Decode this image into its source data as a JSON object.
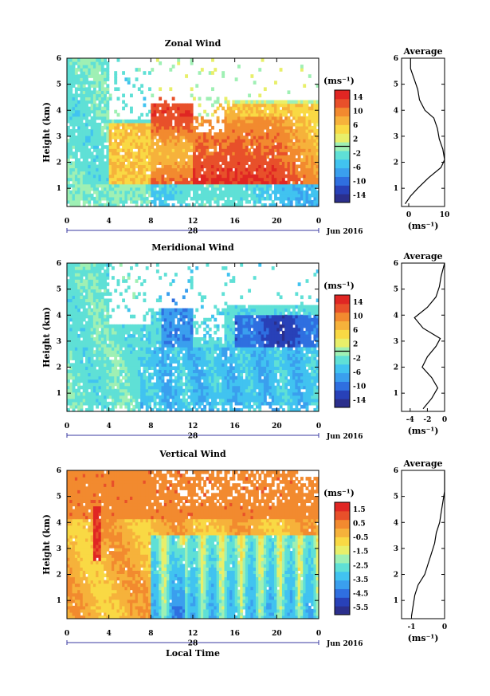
{
  "figure": {
    "date_label": "28",
    "month_label": "Jun 2016",
    "xlabel": "Local Time",
    "time_ticks": [
      "0",
      "4",
      "8",
      "12",
      "16",
      "20",
      "0"
    ],
    "height_ticks": [
      "1",
      "2",
      "3",
      "4",
      "5",
      "6"
    ],
    "ylabel": "Height (km)",
    "average_title": "Average",
    "unit_label": "(ms⁻¹)"
  },
  "colormap": [
    "#2b2f8c",
    "#2841b8",
    "#2f6fe0",
    "#3a9fee",
    "#41c3f0",
    "#5fe0d6",
    "#9ff0b4",
    "#e8ef6a",
    "#f9d944",
    "#f6b23b",
    "#f28a2f",
    "#e8502a",
    "#e02623"
  ],
  "chart_data": [
    {
      "type": "heatmap",
      "title": "Zonal Wind",
      "xlabel": "",
      "ylabel": "Height (km)",
      "x_range_hours": [
        0,
        24
      ],
      "y_range_km": [
        0.3,
        6
      ],
      "colorbar": {
        "ticks": [
          "14",
          "10",
          "6",
          "2",
          "-2",
          "-6",
          "-10",
          "-14"
        ],
        "range": [
          -16,
          16
        ],
        "unit": "(ms⁻¹)"
      },
      "profile": {
        "title": "Average",
        "xlabel": "(ms⁻¹)",
        "xlim": [
          -2,
          10
        ],
        "xticks": [
          "0",
          "10"
        ],
        "height": [
          0.4,
          0.7,
          1.0,
          1.4,
          1.8,
          2.1,
          2.5,
          2.9,
          3.3,
          3.7,
          4.0,
          4.4,
          4.8,
          5.2,
          5.6,
          6.0
        ],
        "value": [
          -1.0,
          0.5,
          2.5,
          5.5,
          9.0,
          10.0,
          9.5,
          8.5,
          8.0,
          7.0,
          4.5,
          3.0,
          2.5,
          1.5,
          0.5,
          0.5
        ]
      }
    },
    {
      "type": "heatmap",
      "title": "Meridional Wind",
      "xlabel": "",
      "ylabel": "Height (km)",
      "x_range_hours": [
        0,
        24
      ],
      "y_range_km": [
        0.3,
        6
      ],
      "colorbar": {
        "ticks": [
          "14",
          "10",
          "6",
          "2",
          "-2",
          "-6",
          "-10",
          "-14"
        ],
        "range": [
          -16,
          16
        ],
        "unit": "(ms⁻¹)"
      },
      "profile": {
        "title": "Average",
        "xlabel": "(ms⁻¹)",
        "xlim": [
          -5,
          0
        ],
        "xticks": [
          "-4",
          "-2",
          "0"
        ],
        "height": [
          0.4,
          0.8,
          1.2,
          1.6,
          2.0,
          2.4,
          2.8,
          3.1,
          3.5,
          3.9,
          4.3,
          4.7,
          5.1,
          5.5,
          6.0
        ],
        "value": [
          -2.5,
          -1.5,
          -0.8,
          -1.5,
          -2.6,
          -2.0,
          -1.0,
          -0.5,
          -2.5,
          -3.5,
          -2.0,
          -1.0,
          -0.6,
          -0.4,
          0.0
        ]
      }
    },
    {
      "type": "heatmap",
      "title": "Vertical Wind",
      "xlabel": "Local Time",
      "ylabel": "Height (km)",
      "x_range_hours": [
        0,
        24
      ],
      "y_range_km": [
        0.3,
        6
      ],
      "colorbar": {
        "ticks": [
          "1.5",
          "0.5",
          "-0.5",
          "-1.5",
          "-2.5",
          "-3.5",
          "-4.5",
          "-5.5"
        ],
        "range": [
          -6,
          2
        ],
        "unit": "(ms⁻¹)"
      },
      "profile": {
        "title": "Average",
        "xlabel": "(ms⁻¹)",
        "xlim": [
          -1.3,
          0
        ],
        "xticks": [
          "-1",
          "0"
        ],
        "height": [
          0.4,
          0.8,
          1.2,
          1.6,
          2.0,
          2.4,
          2.8,
          3.2,
          3.6,
          4.0,
          4.4,
          4.8,
          5.2,
          5.6,
          6.0
        ],
        "value": [
          -1.0,
          -0.95,
          -0.9,
          -0.8,
          -0.6,
          -0.5,
          -0.4,
          -0.3,
          -0.25,
          -0.15,
          -0.1,
          -0.05,
          0.0,
          0.0,
          0.0
        ]
      }
    }
  ]
}
